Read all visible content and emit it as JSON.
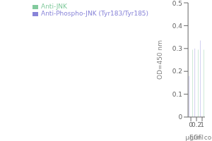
{
  "chart_data": {
    "type": "bar",
    "categories": [
      "0",
      "0.2",
      "1"
    ],
    "series": [
      {
        "name": "Anti-Phospho-JNK (Tyr183/Tyr185)",
        "color": "#8884d8",
        "values": [
          0.18,
          0.3,
          0.335
        ]
      },
      {
        "name": "Anti-JNK",
        "color": "#82ca9d",
        "values": [
          0.295,
          0.295,
          0.295
        ]
      }
    ],
    "ylabel": "OD=450 nm",
    "xlabel": "EGF concentrations",
    "annotations": [
      "μg/ml"
    ],
    "ylim": [
      0.0,
      0.5
    ],
    "yticks": [
      0.0,
      0.1,
      0.2,
      0.3,
      0.4,
      0.5
    ],
    "legend": "upper left",
    "grid": false
  }
}
